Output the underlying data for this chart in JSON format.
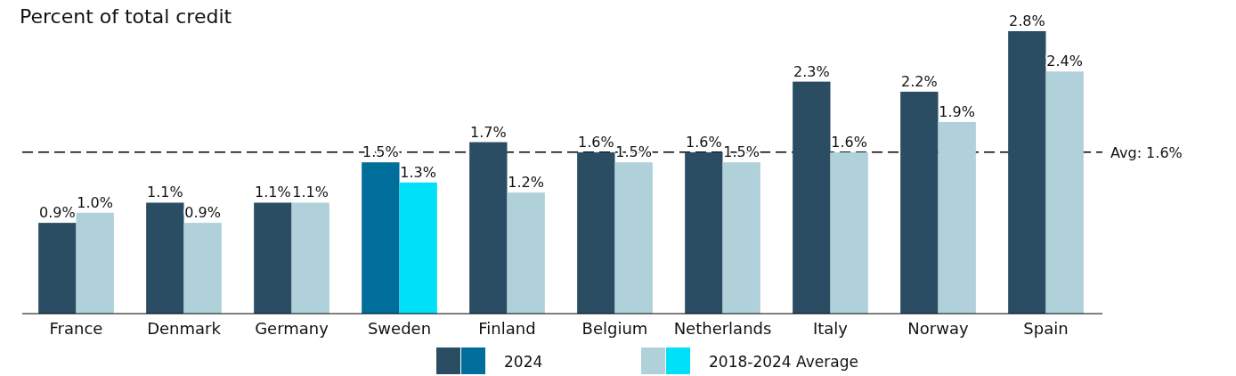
{
  "chart_data": {
    "type": "bar",
    "title": "Percent of total credit",
    "categories": [
      "France",
      "Denmark",
      "Germany",
      "Sweden",
      "Finland",
      "Belgium",
      "Netherlands",
      "Italy",
      "Norway",
      "Spain"
    ],
    "series": [
      {
        "name": "2024",
        "color": "#2b4d63",
        "colors": [
          "#2b4d63",
          "#2b4d63",
          "#2b4d63",
          "#006e9a",
          "#2b4d63",
          "#2b4d63",
          "#2b4d63",
          "#2b4d63",
          "#2b4d63",
          "#2b4d63"
        ],
        "values": [
          0.9,
          1.1,
          1.1,
          1.5,
          1.7,
          1.6,
          1.6,
          2.3,
          2.2,
          2.8
        ],
        "value_labels": [
          "0.9%",
          "1.1%",
          "1.1%",
          "1.5%",
          "1.7%",
          "1.6%",
          "1.6%",
          "2.3%",
          "2.2%",
          "2.8%"
        ]
      },
      {
        "name": "2018-2024 Average",
        "color": "#b0d0da",
        "colors": [
          "#b0d0da",
          "#b0d0da",
          "#b0d0da",
          "#00e1f9",
          "#b0d0da",
          "#b0d0da",
          "#b0d0da",
          "#b0d0da",
          "#b0d0da",
          "#b0d0da"
        ],
        "values": [
          1.0,
          0.9,
          1.1,
          1.3,
          1.2,
          1.5,
          1.5,
          1.6,
          1.9,
          2.4
        ],
        "value_labels": [
          "1.0%",
          "0.9%",
          "1.1%",
          "1.3%",
          "1.2%",
          "1.5%",
          "1.5%",
          "1.6%",
          "1.9%",
          "2.4%"
        ]
      }
    ],
    "ref_lines": [
      {
        "axis": "y",
        "value": 1.6,
        "label": "Avg: 1.6%",
        "color": "#000000",
        "line_style": "dashed"
      }
    ],
    "legend": "bottom",
    "grid": false
  }
}
